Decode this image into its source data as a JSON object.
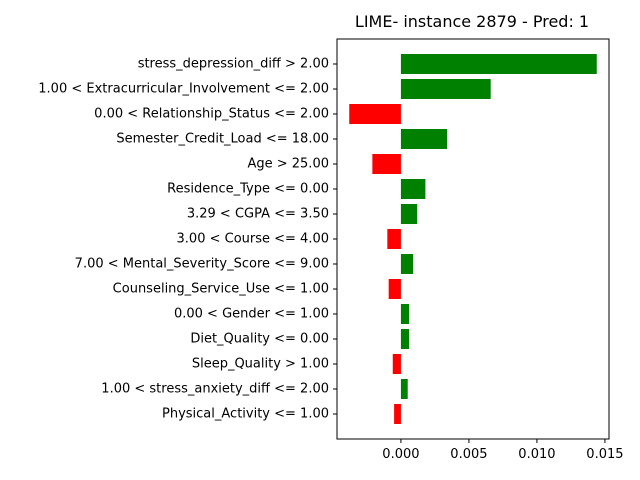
{
  "chart_data": {
    "type": "bar",
    "orientation": "horizontal",
    "title": "LIME- instance 2879 - Pred: 1",
    "xlabel": "",
    "ylabel": "",
    "xlim": [
      -0.0047,
      0.0153
    ],
    "xticks": [
      0.0,
      0.005,
      0.01,
      0.015
    ],
    "xtick_labels": [
      "0.000",
      "0.005",
      "0.010",
      "0.015"
    ],
    "grid": false,
    "colors": {
      "positive": "#008000",
      "negative": "#ff0000"
    },
    "categories": [
      "stress_depression_diff > 2.00",
      "1.00 < Extracurricular_Involvement <= 2.00",
      "0.00 < Relationship_Status <= 2.00",
      "Semester_Credit_Load <= 18.00",
      "Age > 25.00",
      "Residence_Type <= 0.00",
      "3.29 < CGPA <= 3.50",
      "3.00 < Course <= 4.00",
      "7.00 < Mental_Severity_Score <= 9.00",
      "Counseling_Service_Use <= 1.00",
      "0.00 < Gender <= 1.00",
      "Diet_Quality <= 0.00",
      "Sleep_Quality > 1.00",
      "1.00 < stress_anxiety_diff <= 2.00",
      "Physical_Activity <= 1.00"
    ],
    "values": [
      0.0144,
      0.0066,
      -0.0038,
      0.0034,
      -0.0021,
      0.0018,
      0.0012,
      -0.001,
      0.0009,
      -0.0009,
      0.0006,
      0.0006,
      -0.0006,
      0.0005,
      -0.0005
    ]
  }
}
